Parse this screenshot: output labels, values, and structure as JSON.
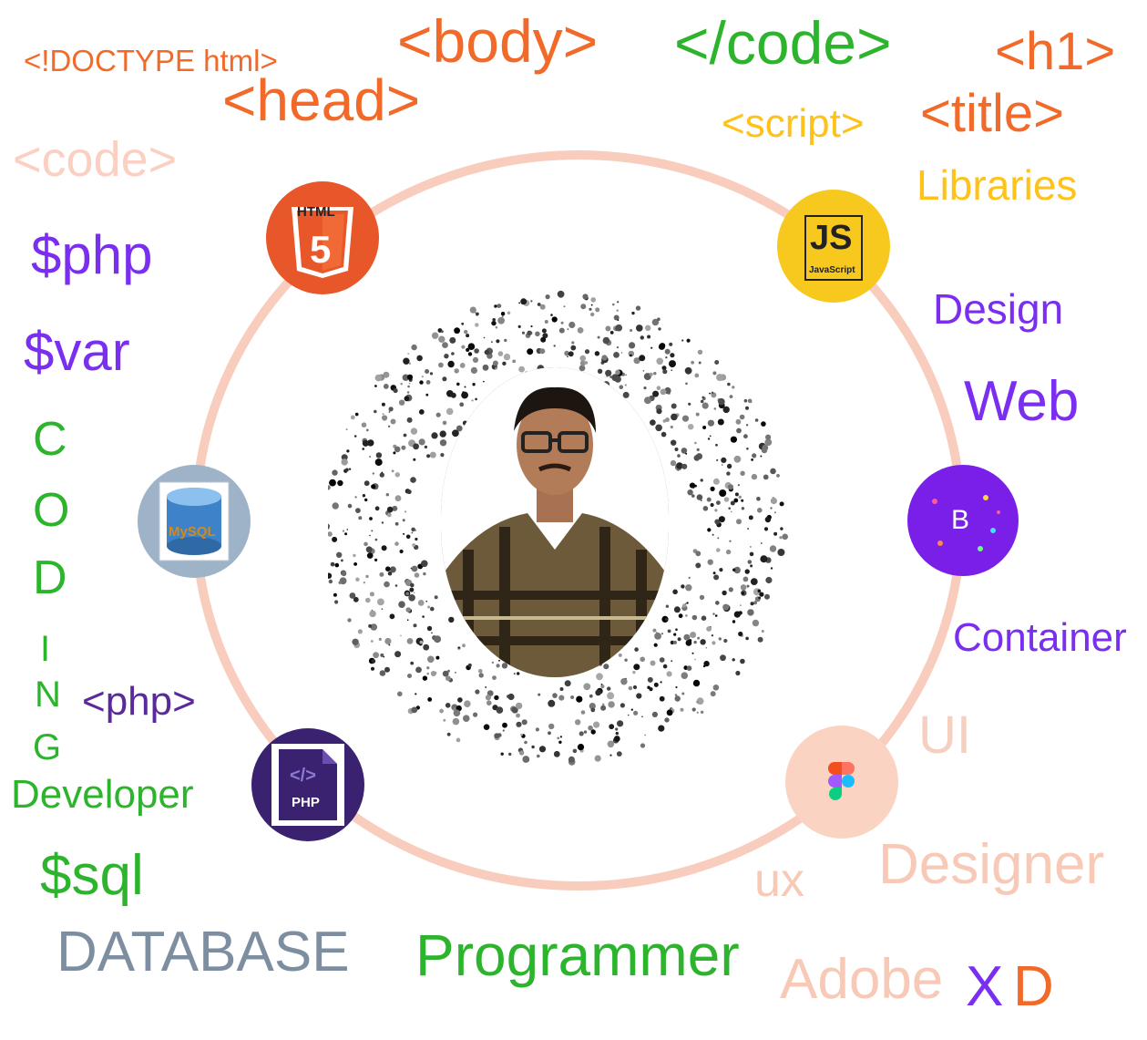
{
  "words": {
    "doctype": "<!DOCTYPE html>",
    "body": "<body>",
    "close_code": "</code>",
    "h1": "<h1>",
    "head": "<head>",
    "script": "<script>",
    "title": "<title>",
    "code": "<code>",
    "libraries": "Libraries",
    "php_var": "$php",
    "var": "$var",
    "design": "Design",
    "web": "Web",
    "container": "Container",
    "php_tag": "<php>",
    "ui": "UI",
    "developer": "Developer",
    "designer": "Designer",
    "ux": "ux",
    "sql": "$sql",
    "database": "DATABASE",
    "programmer": "Programmer",
    "adobe": "Adobe",
    "x": "X",
    "d": "D"
  },
  "coding_letters": [
    "C",
    "O",
    "D",
    "I",
    "N",
    "G"
  ],
  "badges": {
    "html": {
      "label": "HTML",
      "number": "5"
    },
    "js": {
      "label": "JS",
      "sub": "JavaScript"
    },
    "mysql": {
      "label": "MySQL"
    },
    "bootstrap": {
      "label": "B"
    },
    "php": {
      "label": "PHP",
      "glyph": "</>"
    }
  },
  "colors": {
    "orange": "#f26a2a",
    "green": "#2cb52c",
    "purple": "#7a2ff0",
    "yellow": "#ffc21a",
    "peach": "#f7c9b6",
    "slate": "#7d8ea0",
    "ring": "#f9cdbd",
    "html_badge": "#e8572a",
    "js_badge": "#f7c81e",
    "mysql_badge": "#9fb3c8",
    "bootstrap_badge": "#7a1fe8",
    "php_badge": "#3b2270",
    "figma_badge": "#fbd3c3"
  },
  "icons": [
    "html5-icon",
    "javascript-icon",
    "mysql-icon",
    "bootstrap-icon",
    "php-icon",
    "figma-icon"
  ]
}
